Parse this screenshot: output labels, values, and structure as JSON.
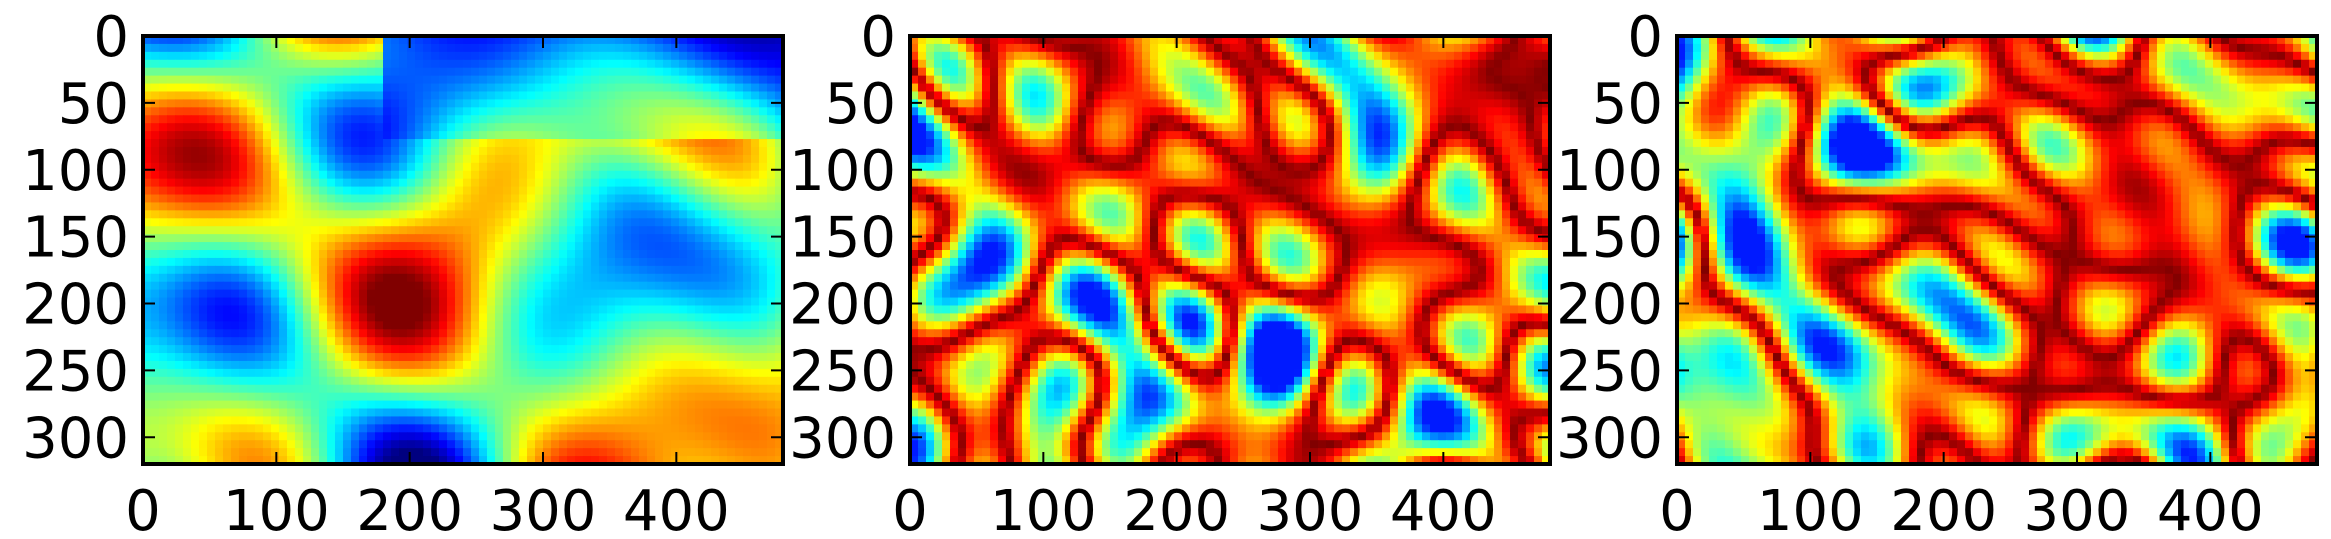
{
  "chart_data": [
    {
      "type": "heatmap",
      "colormap": "jet",
      "grid": false,
      "xlim": [
        0,
        480
      ],
      "ylim": [
        320,
        0
      ],
      "xticks": [
        0,
        100,
        200,
        300,
        400
      ],
      "yticks": [
        0,
        50,
        100,
        150,
        200,
        250,
        300
      ],
      "xtick_labels": [
        "0",
        "100",
        "200",
        "300",
        "400"
      ],
      "ytick_labels": [
        "0",
        "50",
        "100",
        "150",
        "200",
        "250",
        "300"
      ],
      "seed": 11,
      "pattern": "smooth"
    },
    {
      "type": "heatmap",
      "colormap": "jet",
      "grid": false,
      "xlim": [
        0,
        480
      ],
      "ylim": [
        320,
        0
      ],
      "xticks": [
        0,
        100,
        200,
        300,
        400
      ],
      "yticks": [
        0,
        50,
        100,
        150,
        200,
        250,
        300
      ],
      "xtick_labels": [
        "0",
        "100",
        "200",
        "300",
        "400"
      ],
      "ytick_labels": [
        "0",
        "50",
        "100",
        "150",
        "200",
        "250",
        "300"
      ],
      "seed": 23,
      "pattern": "edges"
    },
    {
      "type": "heatmap",
      "colormap": "jet",
      "grid": false,
      "xlim": [
        0,
        480
      ],
      "ylim": [
        320,
        0
      ],
      "xticks": [
        0,
        100,
        200,
        300,
        400
      ],
      "yticks": [
        0,
        50,
        100,
        150,
        200,
        250,
        300
      ],
      "xtick_labels": [
        "0",
        "100",
        "200",
        "300",
        "400"
      ],
      "ytick_labels": [
        "0",
        "50",
        "100",
        "150",
        "200",
        "250",
        "300"
      ],
      "seed": 37,
      "pattern": "edges"
    }
  ]
}
